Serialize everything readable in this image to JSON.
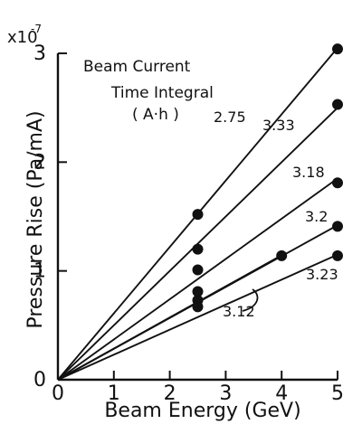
{
  "chart_data": {
    "type": "scatter",
    "title": "",
    "xlabel": "Beam Energy (GeV)",
    "ylabel": "Pressure Rise (Pa/mA)",
    "y_multiplier": "x10",
    "y_multiplier_exponent": "-7",
    "xlim": [
      0,
      5
    ],
    "ylim": [
      0,
      3
    ],
    "x_ticks": [
      "0",
      "1",
      "2",
      "3",
      "4",
      "5"
    ],
    "y_ticks": [
      "0",
      "1",
      "2",
      "3"
    ],
    "legend": {
      "title_line1": "Beam Current",
      "title_line2": "Time Integral",
      "title_line3": "( A·h )"
    },
    "grid": false,
    "series": [
      {
        "name": "2.75",
        "slope": 0.61,
        "points": [
          {
            "x": 2.5,
            "y": 1.52
          },
          {
            "x": 5.0,
            "y": 3.04
          }
        ]
      },
      {
        "name": "3.33",
        "slope": 0.5,
        "points": [
          {
            "x": 2.5,
            "y": 1.2
          },
          {
            "x": 5.0,
            "y": 2.53
          }
        ]
      },
      {
        "name": "3.18",
        "slope": 0.37,
        "points": [
          {
            "x": 2.5,
            "y": 1.01
          },
          {
            "x": 5.0,
            "y": 1.81
          }
        ]
      },
      {
        "name": "3.2",
        "slope": 0.284,
        "points": [
          {
            "x": 2.5,
            "y": 0.81
          },
          {
            "x": 5.0,
            "y": 1.41
          }
        ]
      },
      {
        "name": "3.12",
        "slope": 0.286,
        "points": [
          {
            "x": 2.5,
            "y": 0.73
          },
          {
            "x": 4.0,
            "y": 1.14
          }
        ]
      },
      {
        "name": "3.23",
        "slope": 0.23,
        "points": [
          {
            "x": 2.5,
            "y": 0.67
          },
          {
            "x": 5.0,
            "y": 1.14
          }
        ]
      }
    ]
  }
}
